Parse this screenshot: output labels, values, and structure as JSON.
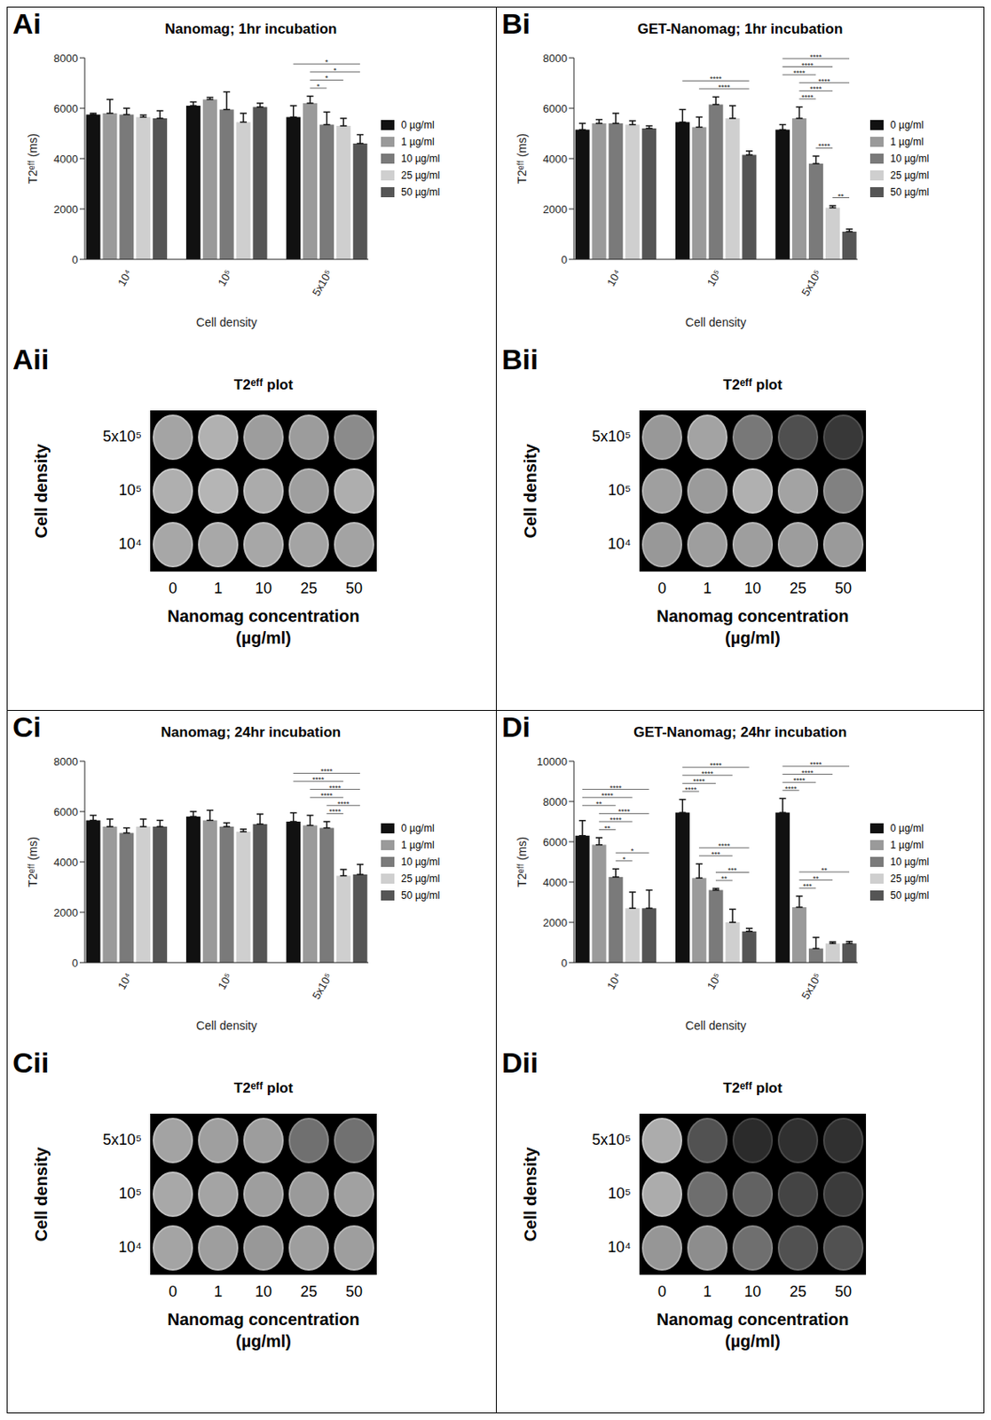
{
  "chart_data": [
    {
      "type": "bar",
      "panel_label": "Ai",
      "title": "Nanomag; 1hr incubation",
      "x_label": "Cell density",
      "y_label": "T2ᵉᶠᶠ (ms)",
      "legend": "right",
      "categories": [
        "10⁴",
        "10⁵",
        "5x10⁵"
      ],
      "ylim": [
        0,
        8000
      ],
      "yticks": [
        0,
        2000,
        4000,
        6000,
        8000
      ],
      "series": [
        {
          "name": "0 µg/ml",
          "color": "#111111",
          "values": [
            5750,
            6100,
            5650
          ],
          "errors": [
            50,
            150,
            450
          ]
        },
        {
          "name": "1 µg/ml",
          "color": "#9a9a9a",
          "values": [
            5800,
            6350,
            6200
          ],
          "errors": [
            550,
            80,
            280
          ]
        },
        {
          "name": "10 µg/ml",
          "color": "#7a7a7a",
          "values": [
            5750,
            5950,
            5350
          ],
          "errors": [
            250,
            700,
            500
          ]
        },
        {
          "name": "25 µg/ml",
          "color": "#cfcfcf",
          "values": [
            5650,
            5450,
            5300
          ],
          "errors": [
            80,
            350,
            300
          ]
        },
        {
          "name": "50 µg/ml",
          "color": "#555555",
          "values": [
            5600,
            6050,
            4600
          ],
          "errors": [
            300,
            150,
            350
          ]
        }
      ],
      "significance": [
        {
          "category": "5x10⁵",
          "from": "1 µg/ml",
          "to": "10 µg/ml",
          "label": "*"
        },
        {
          "category": "5x10⁵",
          "from": "1 µg/ml",
          "to": "25 µg/ml",
          "label": "*"
        },
        {
          "category": "5x10⁵",
          "from": "1 µg/ml",
          "to": "50 µg/ml",
          "label": "*"
        },
        {
          "category": "5x10⁵",
          "from": "0 µg/ml",
          "to": "50 µg/ml",
          "label": "*"
        }
      ]
    },
    {
      "type": "bar",
      "panel_label": "Bi",
      "title": "GET-Nanomag; 1hr incubation",
      "x_label": "Cell density",
      "y_label": "T2ᵉᶠᶠ (ms)",
      "legend": "right",
      "categories": [
        "10⁴",
        "10⁵",
        "5x10⁵"
      ],
      "ylim": [
        0,
        8000
      ],
      "yticks": [
        0,
        2000,
        4000,
        6000,
        8000
      ],
      "series": [
        {
          "name": "0 µg/ml",
          "color": "#111111",
          "values": [
            5150,
            5450,
            5150
          ],
          "errors": [
            250,
            500,
            200
          ]
        },
        {
          "name": "1 µg/ml",
          "color": "#9a9a9a",
          "values": [
            5400,
            5250,
            5600
          ],
          "errors": [
            150,
            400,
            450
          ]
        },
        {
          "name": "10 µg/ml",
          "color": "#7a7a7a",
          "values": [
            5400,
            6150,
            3800
          ],
          "errors": [
            400,
            300,
            300
          ]
        },
        {
          "name": "25 µg/ml",
          "color": "#cfcfcf",
          "values": [
            5350,
            5600,
            2050
          ],
          "errors": [
            150,
            500,
            80
          ]
        },
        {
          "name": "50 µg/ml",
          "color": "#555555",
          "values": [
            5200,
            4150,
            1100
          ],
          "errors": [
            100,
            150,
            100
          ]
        }
      ],
      "significance": [
        {
          "category": "10⁵",
          "from": "1 µg/ml",
          "to": "50 µg/ml",
          "label": "****"
        },
        {
          "category": "10⁵",
          "from": "0 µg/ml",
          "to": "50 µg/ml",
          "label": "****"
        },
        {
          "category": "5x10⁵",
          "from": "25 µg/ml",
          "to": "50 µg/ml",
          "label": "**"
        },
        {
          "category": "5x10⁵",
          "from": "10 µg/ml",
          "to": "25 µg/ml",
          "label": "****"
        },
        {
          "category": "5x10⁵",
          "from": "1 µg/ml",
          "to": "10 µg/ml",
          "label": "****"
        },
        {
          "category": "5x10⁵",
          "from": "1 µg/ml",
          "to": "25 µg/ml",
          "label": "****"
        },
        {
          "category": "5x10⁵",
          "from": "1 µg/ml",
          "to": "50 µg/ml",
          "label": "****"
        },
        {
          "category": "5x10⁵",
          "from": "0 µg/ml",
          "to": "10 µg/ml",
          "label": "****"
        },
        {
          "category": "5x10⁵",
          "from": "0 µg/ml",
          "to": "25 µg/ml",
          "label": "****"
        },
        {
          "category": "5x10⁵",
          "from": "0 µg/ml",
          "to": "50 µg/ml",
          "label": "****"
        }
      ]
    },
    {
      "type": "bar",
      "panel_label": "Ci",
      "title": "Nanomag; 24hr incubation",
      "x_label": "Cell density",
      "y_label": "T2ᵉᶠᶠ (ms)",
      "legend": "right",
      "categories": [
        "10⁴",
        "10⁵",
        "5x10⁵"
      ],
      "ylim": [
        0,
        8000
      ],
      "yticks": [
        0,
        2000,
        4000,
        6000,
        8000
      ],
      "series": [
        {
          "name": "0 µg/ml",
          "color": "#111111",
          "values": [
            5650,
            5800,
            5600
          ],
          "errors": [
            200,
            200,
            350
          ]
        },
        {
          "name": "1 µg/ml",
          "color": "#9a9a9a",
          "values": [
            5400,
            5650,
            5450
          ],
          "errors": [
            300,
            400,
            400
          ]
        },
        {
          "name": "10 µg/ml",
          "color": "#7a7a7a",
          "values": [
            5150,
            5400,
            5350
          ],
          "errors": [
            200,
            150,
            250
          ]
        },
        {
          "name": "25 µg/ml",
          "color": "#cfcfcf",
          "values": [
            5400,
            5200,
            3450
          ],
          "errors": [
            300,
            100,
            250
          ]
        },
        {
          "name": "50 µg/ml",
          "color": "#555555",
          "values": [
            5400,
            5500,
            3500
          ],
          "errors": [
            250,
            400,
            400
          ]
        }
      ],
      "significance": [
        {
          "category": "5x10⁵",
          "from": "10 µg/ml",
          "to": "25 µg/ml",
          "label": "****"
        },
        {
          "category": "5x10⁵",
          "from": "10 µg/ml",
          "to": "50 µg/ml",
          "label": "****"
        },
        {
          "category": "5x10⁵",
          "from": "1 µg/ml",
          "to": "25 µg/ml",
          "label": "****"
        },
        {
          "category": "5x10⁵",
          "from": "1 µg/ml",
          "to": "50 µg/ml",
          "label": "****"
        },
        {
          "category": "5x10⁵",
          "from": "0 µg/ml",
          "to": "25 µg/ml",
          "label": "****"
        },
        {
          "category": "5x10⁵",
          "from": "0 µg/ml",
          "to": "50 µg/ml",
          "label": "****"
        }
      ]
    },
    {
      "type": "bar",
      "panel_label": "Di",
      "title": "GET-Nanomag; 24hr incubation",
      "x_label": "Cell density",
      "y_label": "T2ᵉᶠᶠ (ms)",
      "legend": "right",
      "categories": [
        "10⁴",
        "10⁵",
        "5x10⁵"
      ],
      "ylim": [
        0,
        10000
      ],
      "yticks": [
        0,
        2000,
        4000,
        6000,
        8000,
        10000
      ],
      "series": [
        {
          "name": "0 µg/ml",
          "color": "#111111",
          "values": [
            6300,
            7450,
            7450
          ],
          "errors": [
            750,
            650,
            700
          ]
        },
        {
          "name": "1 µg/ml",
          "color": "#9a9a9a",
          "values": [
            5850,
            4200,
            2750
          ],
          "errors": [
            350,
            700,
            550
          ]
        },
        {
          "name": "10 µg/ml",
          "color": "#7a7a7a",
          "values": [
            4250,
            3600,
            700
          ],
          "errors": [
            400,
            80,
            550
          ]
        },
        {
          "name": "25 µg/ml",
          "color": "#cfcfcf",
          "values": [
            2700,
            2000,
            950
          ],
          "errors": [
            800,
            650,
            80
          ]
        },
        {
          "name": "50 µg/ml",
          "color": "#555555",
          "values": [
            2700,
            1550,
            950
          ],
          "errors": [
            900,
            150,
            100
          ]
        }
      ],
      "significance": [
        {
          "category": "10⁴",
          "from": "10 µg/ml",
          "to": "25 µg/ml",
          "label": "*"
        },
        {
          "category": "10⁴",
          "from": "10 µg/ml",
          "to": "50 µg/ml",
          "label": "*"
        },
        {
          "category": "10⁴",
          "from": "1 µg/ml",
          "to": "10 µg/ml",
          "label": "**"
        },
        {
          "category": "10⁴",
          "from": "1 µg/ml",
          "to": "25 µg/ml",
          "label": "****"
        },
        {
          "category": "10⁴",
          "from": "1 µg/ml",
          "to": "50 µg/ml",
          "label": "****"
        },
        {
          "category": "10⁴",
          "from": "0 µg/ml",
          "to": "10 µg/ml",
          "label": "**"
        },
        {
          "category": "10⁴",
          "from": "0 µg/ml",
          "to": "25 µg/ml",
          "label": "****"
        },
        {
          "category": "10⁴",
          "from": "0 µg/ml",
          "to": "50 µg/ml",
          "label": "****"
        },
        {
          "category": "10⁵",
          "from": "10 µg/ml",
          "to": "25 µg/ml",
          "label": "**"
        },
        {
          "category": "10⁵",
          "from": "10 µg/ml",
          "to": "50 µg/ml",
          "label": "***"
        },
        {
          "category": "10⁵",
          "from": "1 µg/ml",
          "to": "25 µg/ml",
          "label": "***"
        },
        {
          "category": "10⁵",
          "from": "1 µg/ml",
          "to": "50 µg/ml",
          "label": "****"
        },
        {
          "category": "10⁵",
          "from": "0 µg/ml",
          "to": "1 µg/ml",
          "label": "****"
        },
        {
          "category": "10⁵",
          "from": "0 µg/ml",
          "to": "10 µg/ml",
          "label": "****"
        },
        {
          "category": "10⁵",
          "from": "0 µg/ml",
          "to": "25 µg/ml",
          "label": "****"
        },
        {
          "category": "10⁵",
          "from": "0 µg/ml",
          "to": "50 µg/ml",
          "label": "****"
        },
        {
          "category": "5x10⁵",
          "from": "1 µg/ml",
          "to": "10 µg/ml",
          "label": "***"
        },
        {
          "category": "5x10⁵",
          "from": "1 µg/ml",
          "to": "25 µg/ml",
          "label": "**"
        },
        {
          "category": "5x10⁵",
          "from": "1 µg/ml",
          "to": "50 µg/ml",
          "label": "**"
        },
        {
          "category": "5x10⁵",
          "from": "0 µg/ml",
          "to": "1 µg/ml",
          "label": "****"
        },
        {
          "category": "5x10⁵",
          "from": "0 µg/ml",
          "to": "10 µg/ml",
          "label": "****"
        },
        {
          "category": "5x10⁵",
          "from": "0 µg/ml",
          "to": "25 µg/ml",
          "label": "****"
        },
        {
          "category": "5x10⁵",
          "from": "0 µg/ml",
          "to": "50 µg/ml",
          "label": "****"
        }
      ]
    }
  ],
  "images": [
    {
      "panel_label": "Aii",
      "title": "T2ᵉᶠᶠ plot",
      "y_label": "Cell density",
      "row_labels": [
        "5x10⁵",
        "10⁵",
        "10⁴"
      ],
      "column_labels": [
        "0",
        "1",
        "10",
        "25",
        "50"
      ],
      "x_label": [
        "Nanomag concentration",
        "(µg/ml)"
      ]
    },
    {
      "panel_label": "Bii",
      "title": "T2ᵉᶠᶠ plot",
      "y_label": "Cell density",
      "row_labels": [
        "5x10⁵",
        "10⁵",
        "10⁴"
      ],
      "column_labels": [
        "0",
        "1",
        "10",
        "25",
        "50"
      ],
      "x_label": [
        "Nanomag concentration",
        "(µg/ml)"
      ]
    },
    {
      "panel_label": "Cii",
      "title": "T2ᵉᶠᶠ plot",
      "y_label": "Cell density",
      "row_labels": [
        "5x10⁵",
        "10⁵",
        "10⁴"
      ],
      "column_labels": [
        "0",
        "1",
        "10",
        "25",
        "50"
      ],
      "x_label": [
        "Nanomag concentration",
        "(µg/ml)"
      ]
    },
    {
      "panel_label": "Dii",
      "title": "T2ᵉᶠᶠ plot",
      "y_label": "Cell density",
      "row_labels": [
        "5x10⁵",
        "10⁵",
        "10⁴"
      ],
      "column_labels": [
        "0",
        "1",
        "10",
        "25",
        "50"
      ],
      "x_label": [
        "Nanomag concentration",
        "(µg/ml)"
      ]
    }
  ]
}
